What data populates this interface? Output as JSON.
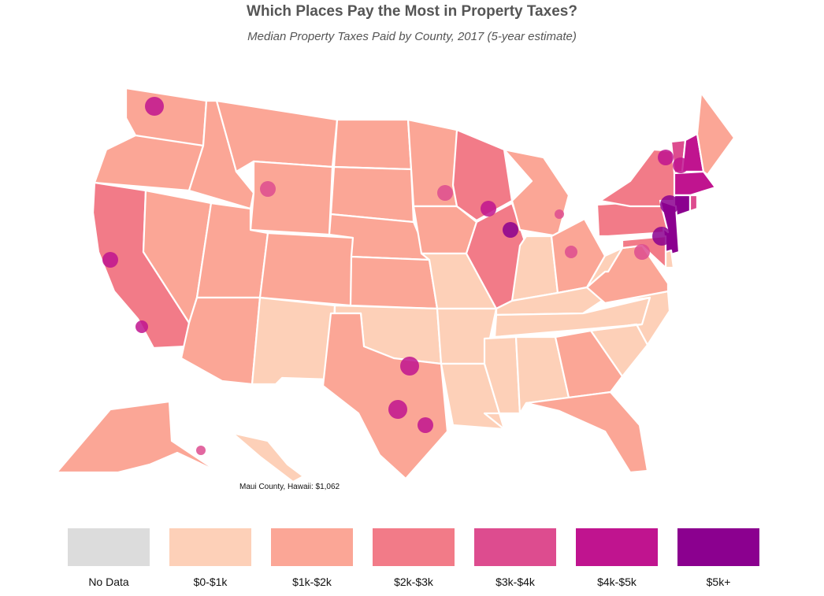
{
  "header": {
    "title": "Which Places Pay the Most in Property Taxes?",
    "subtitle": "Median Property Taxes Paid by County, 2017 (5-year estimate)"
  },
  "tooltip": "Maui County, Hawaii: $1,062",
  "legend": [
    {
      "label": "No Data",
      "color": "#dcdcdc"
    },
    {
      "label": "$0-$1k",
      "color": "#fdd0b8"
    },
    {
      "label": "$1k-$2k",
      "color": "#fba696"
    },
    {
      "label": "$2k-$3k",
      "color": "#f27b88"
    },
    {
      "label": "$3k-$4k",
      "color": "#dd4c8f"
    },
    {
      "label": "$4k-$5k",
      "color": "#c0148f"
    },
    {
      "label": "$5k+",
      "color": "#8b008f"
    }
  ],
  "state_bins": {
    "WA": 2,
    "OR": 2,
    "CA": 3,
    "NV": 2,
    "ID": 2,
    "MT": 2,
    "WY": 2,
    "UT": 2,
    "AZ": 2,
    "CO": 2,
    "NM": 1,
    "ND": 2,
    "SD": 2,
    "NE": 2,
    "KS": 2,
    "OK": 1,
    "TX": 2,
    "MN": 2,
    "IA": 2,
    "MO": 1,
    "AR": 1,
    "LA": 1,
    "WI": 3,
    "IL": 3,
    "MI": 2,
    "IN": 1,
    "OH": 2,
    "KY": 1,
    "TN": 1,
    "MS": 1,
    "AL": 1,
    "GA": 2,
    "FL": 2,
    "SC": 1,
    "NC": 1,
    "VA": 2,
    "WV": 1,
    "PA": 3,
    "NY": 3,
    "VT": 4,
    "NH": 5,
    "ME": 2,
    "MA": 5,
    "CT": 6,
    "RI": 4,
    "NJ": 6,
    "DE": 1,
    "MD": 3,
    "AK": 2,
    "HI": 1
  }
}
